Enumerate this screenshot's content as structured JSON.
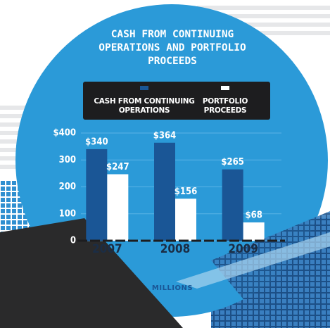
{
  "chart_data": {
    "type": "bar",
    "title": "CASH FROM CONTINUING OPERATIONS AND PORTFOLIO PROCEEDS",
    "categories": [
      "2007",
      "2008",
      "2009"
    ],
    "series": [
      {
        "name": "CASH FROM CONTINUING OPERATIONS",
        "color": "#1a5696",
        "values": [
          340,
          364,
          265
        ],
        "value_labels": [
          "$340",
          "$364",
          "$265"
        ]
      },
      {
        "name": "PORTFOLIO PROCEEDS",
        "color": "#ffffff",
        "values": [
          247,
          156,
          68
        ],
        "value_labels": [
          "$247",
          "$156",
          "$68"
        ]
      }
    ],
    "ylim": [
      0,
      400
    ],
    "yticks": [
      0,
      100,
      200,
      300,
      {
        "value": 400,
        "label": "$400"
      }
    ],
    "y_label": "MILLIONS",
    "grid": true
  }
}
